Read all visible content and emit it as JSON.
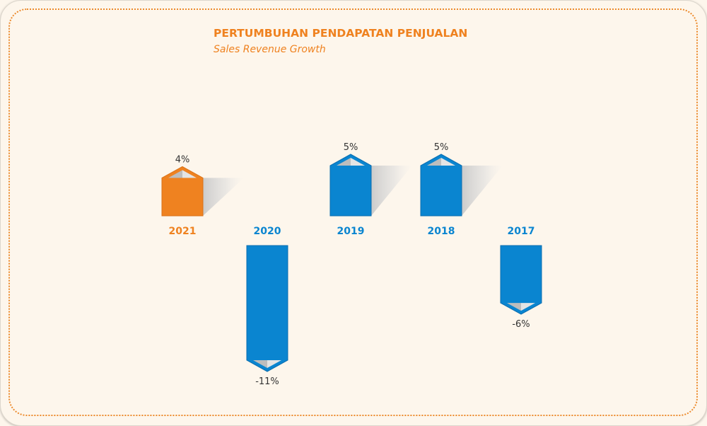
{
  "header": {
    "title": "PERTUMBUHAN PENDAPATAN PENJUALAN",
    "subtitle": "Sales Revenue Growth"
  },
  "colors": {
    "highlight": "#ef8220",
    "bar": "#0a85d0",
    "bar_edge": "#0a6db0",
    "background": "#fdf6ec",
    "frame_dots": "#ec8a2c"
  },
  "chart_data": {
    "type": "bar",
    "categories": [
      "2021",
      "2020",
      "2019",
      "2018",
      "2017"
    ],
    "values": [
      4,
      -11,
      5,
      5,
      -6
    ],
    "value_labels": [
      "4%",
      "-11%",
      "5%",
      "5%",
      "-6%"
    ],
    "highlight_category": "2021",
    "unit": "%",
    "ylim": [
      -11,
      5
    ],
    "grid": false,
    "legend": "none"
  }
}
